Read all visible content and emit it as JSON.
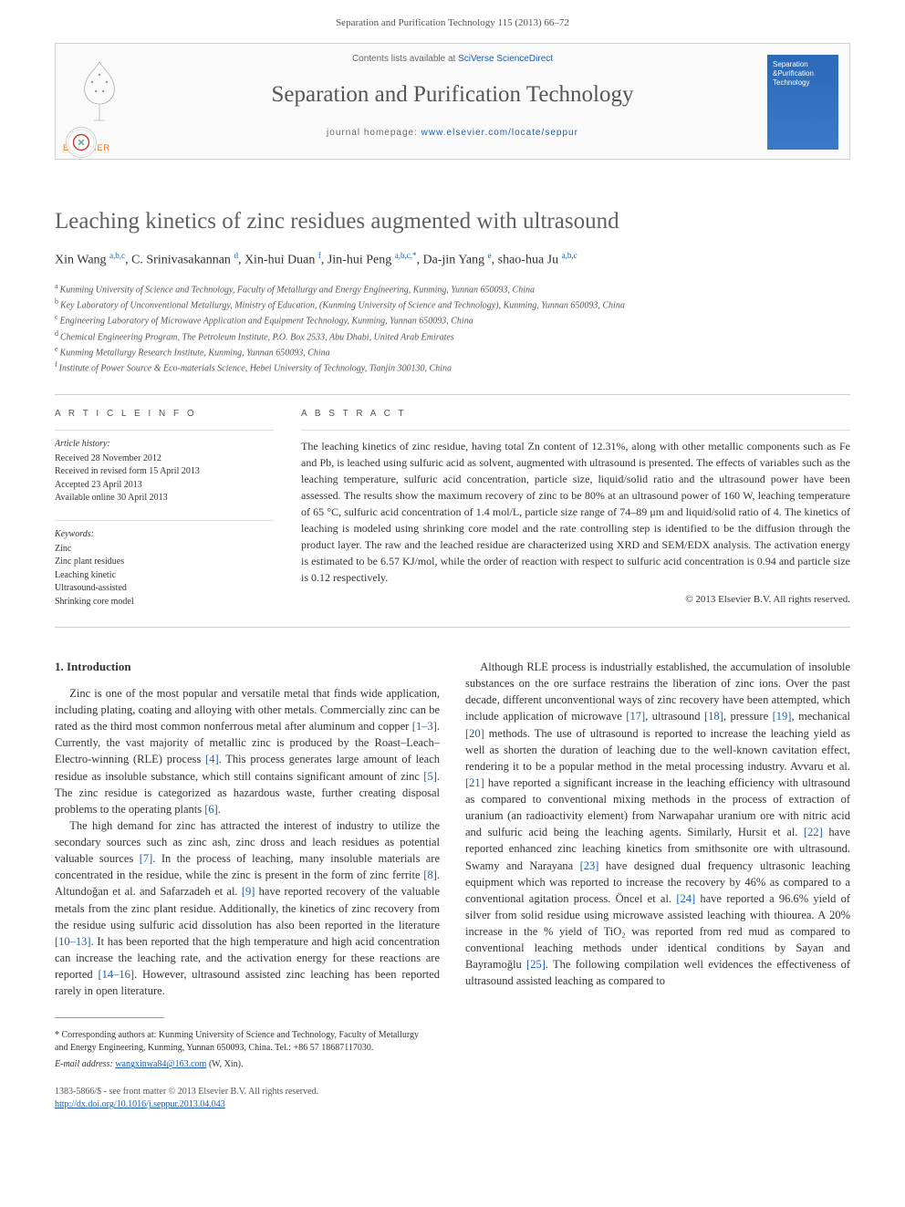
{
  "header": {
    "citation": "Separation and Purification Technology 115 (2013) 66–72"
  },
  "banner": {
    "contents_prefix": "Contents lists available at ",
    "contents_link_text": "SciVerse ScienceDirect",
    "journal_title": "Separation and Purification Technology",
    "homepage_prefix": "journal homepage: ",
    "homepage_url": "www.elsevier.com/locate/seppur",
    "publisher": "ELSEVIER",
    "cover_text": "Separation &Purification Technology",
    "logo_color": "#ff6a00",
    "cover_bg_top": "#2a6ab8",
    "cover_bg_bottom": "#3a7ac8"
  },
  "article": {
    "title": "Leaching kinetics of zinc residues augmented with ultrasound",
    "authors_html": "Xin Wang <sup>a,b,c</sup>, C. Srinivasakannan <sup>d</sup>, Xin-hui Duan <sup>f</sup>, Jin-hui Peng <sup>a,b,c,*</sup>, Da-jin Yang <sup>e</sup>, shao-hua Ju <sup>a,b,c</sup>",
    "affiliations": [
      {
        "key": "a",
        "text": "Kunming University of Science and Technology, Faculty of Metallurgy and Energy Engineering, Kunming, Yunnan 650093, China"
      },
      {
        "key": "b",
        "text": "Key Laboratory of Unconventional Metallurgy, Ministry of Education, (Kunming University of Science and Technology), Kunming, Yunnan 650093, China"
      },
      {
        "key": "c",
        "text": "Engineering Laboratory of Microwave Application and Equipment Technology, Kunming, Yunnan 650093, China"
      },
      {
        "key": "d",
        "text": "Chemical Engineering Program, The Petroleum Institute, P.O. Box 2533, Abu Dhabi, United Arab Emirates"
      },
      {
        "key": "e",
        "text": "Kunming Metallurgy Research Institute, Kunming, Yunnan 650093, China"
      },
      {
        "key": "f",
        "text": "Institute of Power Source & Eco-materials Science, Hebei University of Technology, Tianjin 300130, China"
      }
    ]
  },
  "article_info": {
    "heading": "A R T I C L E   I N F O",
    "history_label": "Article history:",
    "history": [
      "Received 28 November 2012",
      "Received in revised form 15 April 2013",
      "Accepted 23 April 2013",
      "Available online 30 April 2013"
    ],
    "keywords_label": "Keywords:",
    "keywords": [
      "Zinc",
      "Zinc plant residues",
      "Leaching kinetic",
      "Ultrasound-assisted",
      "Shrinking core model"
    ]
  },
  "abstract": {
    "heading": "A B S T R A C T",
    "text": "The leaching kinetics of zinc residue, having total Zn content of 12.31%, along with other metallic components such as Fe and Pb, is leached using sulfuric acid as solvent, augmented with ultrasound is presented. The effects of variables such as the leaching temperature, sulfuric acid concentration, particle size, liquid/solid ratio and the ultrasound power have been assessed. The results show the maximum recovery of zinc to be 80% at an ultrasound power of 160 W, leaching temperature of 65 °C, sulfuric acid concentration of 1.4 mol/L, particle size range of 74–89 μm and liquid/solid ratio of 4. The kinetics of leaching is modeled using shrinking core model and the rate controlling step is identified to be the diffusion through the product layer. The raw and the leached residue are characterized using XRD and SEM/EDX analysis. The activation energy is estimated to be 6.57 KJ/mol, while the order of reaction with respect to sulfuric acid concentration is 0.94 and particle size is 0.12 respectively.",
    "copyright": "© 2013 Elsevier B.V. All rights reserved."
  },
  "body": {
    "section1_heading": "1. Introduction",
    "p1": "Zinc is one of the most popular and versatile metal that finds wide application, including plating, coating and alloying with other metals. Commercially zinc can be rated as the third most common nonferrous metal after aluminum and copper [1–3]. Currently, the vast majority of metallic zinc is produced by the Roast–Leach–Electro-winning (RLE) process [4]. This process generates large amount of leach residue as insoluble substance, which still contains significant amount of zinc [5]. The zinc residue is categorized as hazardous waste, further creating disposal problems to the operating plants [6].",
    "p2": "The high demand for zinc has attracted the interest of industry to utilize the secondary sources such as zinc ash, zinc dross and leach residues as potential valuable sources [7]. In the process of leaching, many insoluble materials are concentrated in the residue, while the zinc is present in the form of zinc ferrite [8]. Altundoğan et al. and Safarzadeh et al. [9] have reported recovery of the valuable metals from the zinc plant residue. Additionally, the kinetics of zinc recovery from the residue using sulfuric acid dissolution has also been reported in the literature [10–13]. It has been reported that the high temperature and high acid concentration can increase the leaching rate, and the activation energy for these reactions are reported [14–16]. However, ultrasound assisted zinc leaching has been reported rarely in open literature.",
    "p3": "Although RLE process is industrially established, the accumulation of insoluble substances on the ore surface restrains the liberation of zinc ions. Over the past decade, different unconventional ways of zinc recovery have been attempted, which include application of microwave [17], ultrasound [18], pressure [19], mechanical [20] methods. The use of ultrasound is reported to increase the leaching yield as well as shorten the duration of leaching due to the well-known cavitation effect, rendering it to be a popular method in the metal processing industry. Avvaru et al. [21] have reported a significant increase in the leaching efficiency with ultrasound as compared to conventional mixing methods in the process of extraction of uranium (an radioactivity element) from Narwapahar uranium ore with nitric acid and sulfuric acid being the leaching agents. Similarly, Hursit et al. [22] have reported enhanced zinc leaching kinetics from smithsonite ore with ultrasound. Swamy and Narayana [23] have designed dual frequency ultrasonic leaching equipment which was reported to increase the recovery by 46% as compared to a conventional agitation process. Öncel et al. [24] have reported a 96.6% yield of silver from solid residue using microwave assisted leaching with thiourea. A 20% increase in the % yield of TiO₂ was reported from red mud as compared to conventional leaching methods under identical conditions by Sayan and Bayramoğlu [25]. The following compilation well evidences the effectiveness of ultrasound assisted leaching as compared to"
  },
  "corresponding": {
    "label": "* Corresponding authors at: Kunming University of Science and Technology, Faculty of Metallurgy and Energy Engineering, Kunming, Yunnan 650093, China. Tel.: +86 57 18687117030.",
    "email_label": "E-mail address:",
    "email": "wangxinwa84@163.com",
    "email_suffix": "(W, Xin)."
  },
  "footer": {
    "line1": "1383-5866/$ - see front matter © 2013 Elsevier B.V. All rights reserved.",
    "doi": "http://dx.doi.org/10.1016/j.seppur.2013.04.043"
  },
  "colors": {
    "link": "#1a5fad",
    "text": "#333333",
    "heading_gray": "#606060",
    "orange": "#ff6a00"
  }
}
